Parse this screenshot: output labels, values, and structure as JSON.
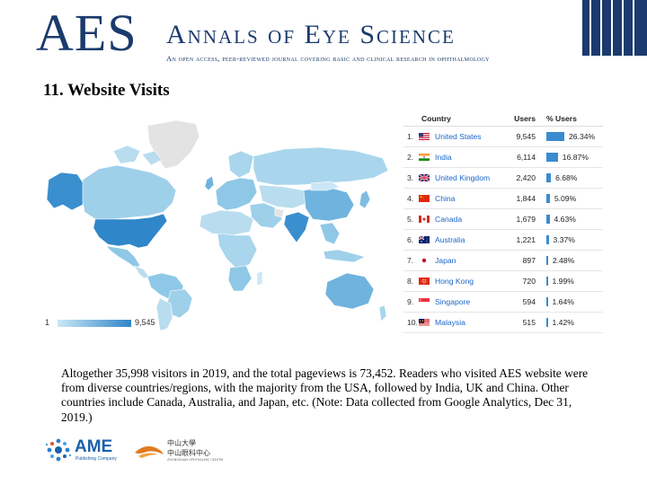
{
  "header": {
    "logo": "AES",
    "journal_name": "Annals of Eye Science",
    "tagline": "An open access, peer-reviewed journal covering basic and clinical research in ophthalmology"
  },
  "slide": {
    "title": "11. Website Visits"
  },
  "map": {
    "legend_min": "1",
    "legend_max": "9,545",
    "colors": {
      "max": "#2f86c9",
      "min": "#cbe7f5",
      "nodata": "#e3e3e3"
    }
  },
  "table": {
    "headers": {
      "country": "Country",
      "users": "Users",
      "pct": "% Users"
    },
    "rows": [
      {
        "rank": "1.",
        "flag": "us-flag-icon",
        "country": "United States",
        "users": "9,545",
        "pct": "26.34%",
        "share": 26.34
      },
      {
        "rank": "2.",
        "flag": "india-flag-icon",
        "country": "India",
        "users": "6,114",
        "pct": "16.87%",
        "share": 16.87
      },
      {
        "rank": "3.",
        "flag": "uk-flag-icon",
        "country": "United Kingdom",
        "users": "2,420",
        "pct": "6.68%",
        "share": 6.68
      },
      {
        "rank": "4.",
        "flag": "china-flag-icon",
        "country": "China",
        "users": "1,844",
        "pct": "5.09%",
        "share": 5.09
      },
      {
        "rank": "5.",
        "flag": "canada-flag-icon",
        "country": "Canada",
        "users": "1,679",
        "pct": "4.63%",
        "share": 4.63
      },
      {
        "rank": "6.",
        "flag": "australia-flag-icon",
        "country": "Australia",
        "users": "1,221",
        "pct": "3.37%",
        "share": 3.37
      },
      {
        "rank": "7.",
        "flag": "japan-flag-icon",
        "country": "Japan",
        "users": "897",
        "pct": "2.48%",
        "share": 2.48
      },
      {
        "rank": "8.",
        "flag": "hongkong-flag-icon",
        "country": "Hong Kong",
        "users": "720",
        "pct": "1.99%",
        "share": 1.99
      },
      {
        "rank": "9.",
        "flag": "singapore-flag-icon",
        "country": "Singapore",
        "users": "594",
        "pct": "1.64%",
        "share": 1.64
      },
      {
        "rank": "10.",
        "flag": "malaysia-flag-icon",
        "country": "Malaysia",
        "users": "515",
        "pct": "1.42%",
        "share": 1.42
      }
    ],
    "bar_color": "#3a8bd0",
    "link_color": "#1a66c9"
  },
  "body": {
    "text": "Altogether 35,998 visitors in 2019, and the total pageviews is 73,452. Readers who visited AES website were from diverse countries/regions, with the majority from the USA, followed by India, UK and China. Other countries include Canada, Australia, and Japan, etc. (Note: Data collected from Google Analytics, Dec 31, 2019.)"
  },
  "footer": {
    "ame_name": "AME",
    "ame_sub": "Publishing Company",
    "zs_line1": "中山大學",
    "zs_line2": "中山眼科中心",
    "zs_line3": "ZHONGSHAN OPHTHALMIC CENTER"
  }
}
